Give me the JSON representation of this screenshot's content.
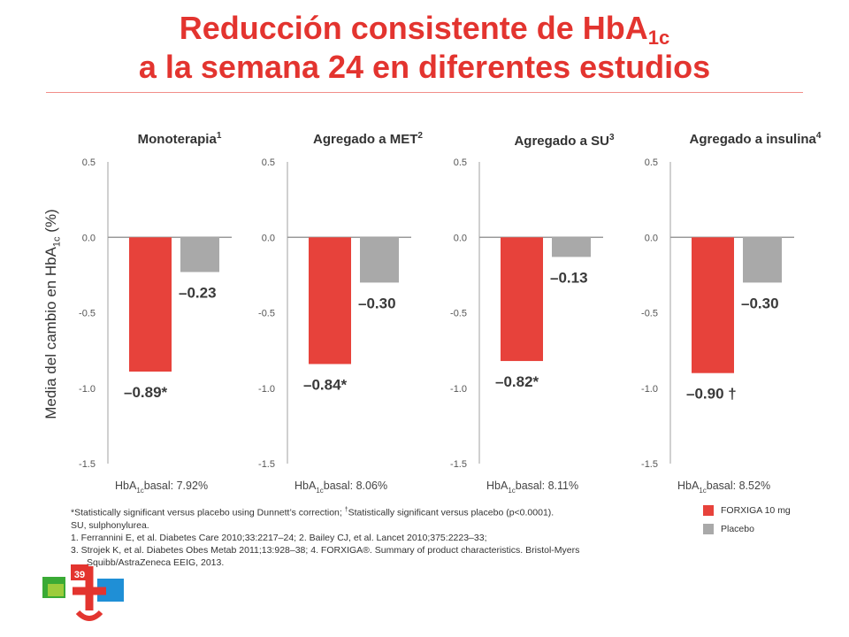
{
  "title": {
    "line1_prefix": "Reducción consistente de HbA",
    "line1_sub": "1c",
    "line2": "a la semana 24 en diferentes estudios"
  },
  "colors": {
    "accent": "#e3342f",
    "forxiga": "#e7423b",
    "placebo": "#a9a9a9"
  },
  "y_axis_label": {
    "prefix": "Media del cambio en HbA",
    "sub": "1c",
    "suffix": " (%)"
  },
  "chart_data": [
    {
      "type": "bar",
      "title": "Monoterapia",
      "ref": "1",
      "categories": [
        "FORXIGA 10 mg",
        "Placebo"
      ],
      "values": [
        -0.89,
        -0.23
      ],
      "labels": [
        "–0.89*",
        "–0.23"
      ],
      "yticks": [
        "0.5",
        "0.0",
        "-0.5",
        "-1.0",
        "-1.5"
      ],
      "ylim": [
        -1.5,
        0.5
      ],
      "baseline": {
        "prefix": "HbA",
        "sub": "1c",
        "rest": "basal: 7.92%"
      }
    },
    {
      "type": "bar",
      "title": "Agregado a MET",
      "ref": "2",
      "categories": [
        "FORXIGA 10 mg",
        "Placebo"
      ],
      "values": [
        -0.84,
        -0.3
      ],
      "labels": [
        "–0.84*",
        "–0.30"
      ],
      "yticks": [
        "0.5",
        "0.0",
        "-0.5",
        "-1.0",
        "-1.5"
      ],
      "ylim": [
        -1.5,
        0.5
      ],
      "baseline": {
        "prefix": "HbA",
        "sub": "1c",
        "rest": "basal: 8.06%"
      }
    },
    {
      "type": "bar",
      "title": "Agregado a SU",
      "ref": "3",
      "categories": [
        "FORXIGA 10 mg",
        "Placebo"
      ],
      "values": [
        -0.82,
        -0.13
      ],
      "labels": [
        "–0.82*",
        "–0.13"
      ],
      "yticks": [
        "0.5",
        "0.0",
        "-0.5",
        "-1.0",
        "-1.5"
      ],
      "ylim": [
        -1.5,
        0.5
      ],
      "baseline": {
        "prefix": "HbA",
        "sub": "1c",
        "rest": "basal: 8.11%"
      }
    },
    {
      "type": "bar",
      "title": "Agregado a insulina",
      "ref": "4",
      "categories": [
        "FORXIGA 10 mg",
        "Placebo"
      ],
      "values": [
        -0.9,
        -0.3
      ],
      "labels": [
        "–0.90 †",
        "–0.30"
      ],
      "yticks": [
        "0.5",
        "0.0",
        "-0.5",
        "-1.0",
        "-1.5"
      ],
      "ylim": [
        -1.5,
        0.5
      ],
      "baseline": {
        "prefix": "HbA",
        "sub": "1c",
        "rest": "basal: 8.52%"
      }
    }
  ],
  "legend": [
    {
      "label": "FORXIGA 10 mg",
      "color": "#e7423b"
    },
    {
      "label": "Placebo",
      "color": "#a9a9a9"
    }
  ],
  "footnotes": {
    "stats_a": "*Statistically significant versus placebo using Dunnett’s correction; ",
    "stats_dagger": "†",
    "stats_b": "Statistically significant versus placebo (p<0.0001).",
    "su": "SU, sulphonylurea.",
    "ref1": "1. Ferrannini E, et al. Diabetes Care 2010;33:2217–24;  2. Bailey CJ, et al. Lancet 2010;375:2223–33;",
    "ref3": "3. Strojek K, et al. Diabetes Obes Metab 2011;13:928–38;  4. FORXIGA®. Summary of product characteristics. Bristol-Myers",
    "ref3b": "Squibb/AstraZeneca EEIG, 2013."
  },
  "page_number": "39"
}
